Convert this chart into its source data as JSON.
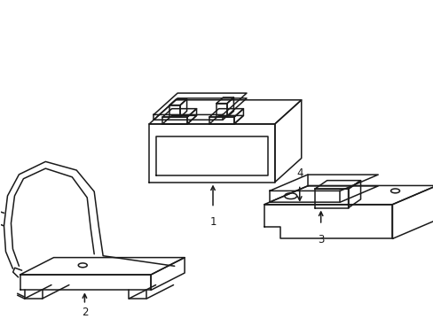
{
  "bg_color": "#ffffff",
  "line_color": "#1a1a1a",
  "line_width": 1.1,
  "figsize": [
    4.89,
    3.6
  ],
  "dpi": 100
}
